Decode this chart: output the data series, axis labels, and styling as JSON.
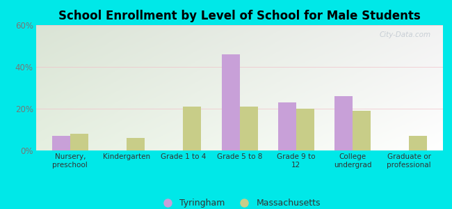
{
  "title": "School Enrollment by Level of School for Male Students",
  "categories": [
    "Nursery,\npreschool",
    "Kindergarten",
    "Grade 1 to 4",
    "Grade 5 to 8",
    "Grade 9 to\n12",
    "College\nundergrad",
    "Graduate or\nprofessional"
  ],
  "tyringham": [
    7,
    0,
    0,
    46,
    23,
    26,
    0
  ],
  "massachusetts": [
    8,
    6,
    21,
    21,
    20,
    19,
    7
  ],
  "tyringham_color": "#c8a0d8",
  "massachusetts_color": "#c8cd88",
  "background_color": "#00e8e8",
  "plot_bg_gradient_left": "#eaf5e0",
  "plot_bg_gradient_right": "#f5fff5",
  "ylim": [
    0,
    60
  ],
  "yticks": [
    0,
    20,
    40,
    60
  ],
  "ytick_labels": [
    "0%",
    "20%",
    "40%",
    "60%"
  ],
  "legend_tyringham": "Tyringham",
  "legend_massachusetts": "Massachusetts",
  "bar_width": 0.32,
  "watermark": "City-Data.com"
}
